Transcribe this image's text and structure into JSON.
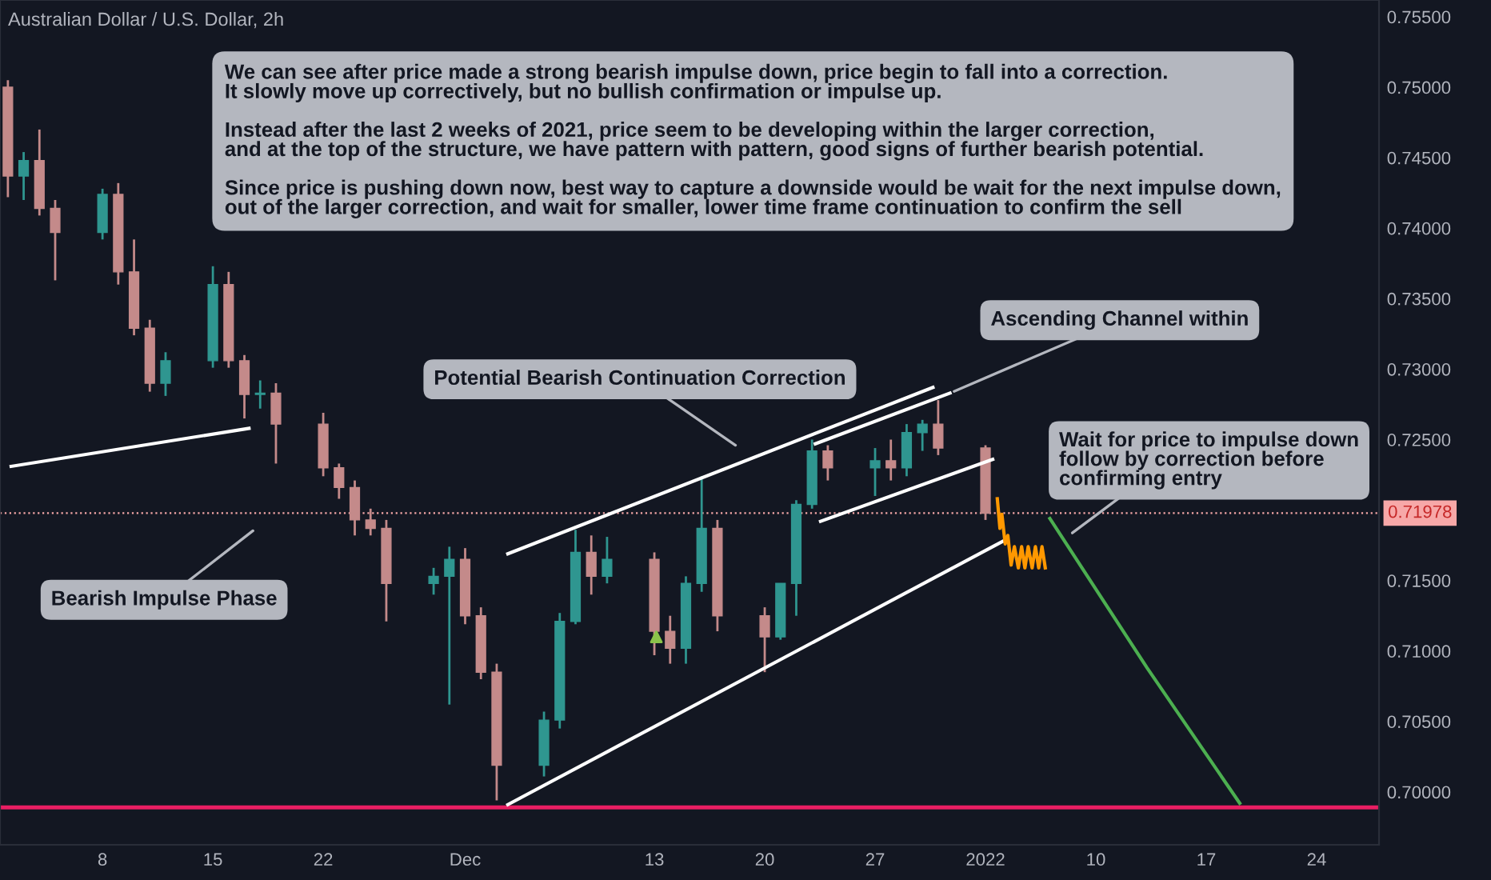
{
  "chart_data": {
    "type": "candlestick",
    "title": "Australian Dollar / U.S. Dollar, 2h",
    "x": [
      "2021-11-02",
      "2021-11-03",
      "2021-11-04",
      "2021-11-05",
      "2021-11-08",
      "2021-11-09",
      "2021-11-10",
      "2021-11-11",
      "2021-11-12",
      "2021-11-15",
      "2021-11-16",
      "2021-11-17",
      "2021-11-18",
      "2021-11-19",
      "2021-11-22",
      "2021-11-23",
      "2021-11-24",
      "2021-11-25",
      "2021-11-26",
      "2021-11-29",
      "2021-11-30",
      "2021-12-01",
      "2021-12-02",
      "2021-12-03",
      "2021-12-06",
      "2021-12-07",
      "2021-12-08",
      "2021-12-09",
      "2021-12-10",
      "2021-12-13",
      "2021-12-14",
      "2021-12-15",
      "2021-12-16",
      "2021-12-17",
      "2021-12-20",
      "2021-12-21",
      "2021-12-22",
      "2021-12-23",
      "2021-12-24",
      "2021-12-27",
      "2021-12-28",
      "2021-12-29",
      "2021-12-30",
      "2021-12-31",
      "2022-01-03"
    ],
    "ohlc": [
      [
        0.75,
        0.7505,
        0.7422,
        0.7437
      ],
      [
        0.7437,
        0.7454,
        0.742,
        0.7448
      ],
      [
        0.7448,
        0.747,
        0.7409,
        0.7414
      ],
      [
        0.7414,
        0.742,
        0.7363,
        0.7397
      ],
      [
        0.7397,
        0.7428,
        0.7392,
        0.7424
      ],
      [
        0.7424,
        0.7432,
        0.736,
        0.7369
      ],
      [
        0.7369,
        0.7392,
        0.7324,
        0.7329
      ],
      [
        0.7329,
        0.7335,
        0.7284,
        0.729
      ],
      [
        0.729,
        0.7312,
        0.7281,
        0.7306
      ],
      [
        0.7306,
        0.7373,
        0.7301,
        0.736
      ],
      [
        0.736,
        0.7369,
        0.7301,
        0.7306
      ],
      [
        0.7306,
        0.731,
        0.7265,
        0.7282
      ],
      [
        0.7282,
        0.7292,
        0.7272,
        0.7283
      ],
      [
        0.7283,
        0.729,
        0.7233,
        0.7261
      ],
      [
        0.7261,
        0.7269,
        0.7224,
        0.723
      ],
      [
        0.723,
        0.7233,
        0.7208,
        0.7216
      ],
      [
        0.7216,
        0.7221,
        0.7182,
        0.7193
      ],
      [
        0.7193,
        0.7201,
        0.7182,
        0.7187
      ],
      [
        0.7187,
        0.7193,
        0.7121,
        0.7148
      ],
      [
        0.7148,
        0.7159,
        0.714,
        0.7153
      ],
      [
        0.7153,
        0.7174,
        0.7062,
        0.7165
      ],
      [
        0.7165,
        0.7173,
        0.7119,
        0.7125
      ],
      [
        0.7125,
        0.7131,
        0.708,
        0.7085
      ],
      [
        0.7085,
        0.7091,
        0.6994,
        0.7019
      ],
      [
        0.7019,
        0.7057,
        0.7011,
        0.7051
      ],
      [
        0.7051,
        0.7127,
        0.7045,
        0.7121
      ],
      [
        0.7121,
        0.7186,
        0.7119,
        0.717
      ],
      [
        0.717,
        0.7182,
        0.714,
        0.7153
      ],
      [
        0.7153,
        0.7181,
        0.7148,
        0.7165
      ],
      [
        0.7165,
        0.717,
        0.7097,
        0.7114
      ],
      [
        0.7114,
        0.7125,
        0.7091,
        0.7102
      ],
      [
        0.7102,
        0.7153,
        0.7091,
        0.7148
      ],
      [
        0.7148,
        0.7224,
        0.7142,
        0.7187
      ],
      [
        0.7187,
        0.7193,
        0.7114,
        0.7125
      ],
      [
        0.7125,
        0.7131,
        0.7085,
        0.711
      ],
      [
        0.711,
        0.7148,
        0.7108,
        0.7148
      ],
      [
        0.7148,
        0.7207,
        0.7125,
        0.7204
      ],
      [
        0.7204,
        0.725,
        0.7201,
        0.7242
      ],
      [
        0.7242,
        0.7246,
        0.7221,
        0.723
      ],
      [
        0.723,
        0.7244,
        0.721,
        0.7235
      ],
      [
        0.7235,
        0.725,
        0.7221,
        0.723
      ],
      [
        0.723,
        0.7261,
        0.7224,
        0.7255
      ],
      [
        0.7255,
        0.7264,
        0.7242,
        0.7261
      ],
      [
        0.7261,
        0.7278,
        0.7239,
        0.7244
      ],
      [
        0.7244,
        0.7246,
        0.7193,
        0.71978
      ]
    ],
    "colors": [
      "#c48a8a",
      "#2f9690",
      "#c48a8a",
      "#c48a8a",
      "#2f9690",
      "#c48a8a",
      "#c48a8a",
      "#c48a8a",
      "#2f9690",
      "#2f9690",
      "#c48a8a",
      "#c48a8a",
      "#2f9690",
      "#c48a8a",
      "#c48a8a",
      "#c48a8a",
      "#c48a8a",
      "#c48a8a",
      "#c48a8a",
      "#2f9690",
      "#2f9690",
      "#c48a8a",
      "#c48a8a",
      "#c48a8a",
      "#2f9690",
      "#2f9690",
      "#2f9690",
      "#c48a8a",
      "#2f9690",
      "#c48a8a",
      "#c48a8a",
      "#2f9690",
      "#2f9690",
      "#c48a8a",
      "#c48a8a",
      "#2f9690",
      "#2f9690",
      "#2f9690",
      "#c48a8a",
      "#2f9690",
      "#c48a8a",
      "#2f9690",
      "#2f9690",
      "#c48a8a",
      "#c48a8a"
    ],
    "series": [
      {
        "type": "line",
        "color": "#ffffff",
        "x": [
          "2021-11-02T05:00",
          "2021-11-17T07:00"
        ],
        "values": [
          0.7231,
          0.7258
        ]
      },
      {
        "type": "line",
        "color": "#ffffff",
        "x": [
          "2021-12-03T17:00",
          "2021-12-30T16:00"
        ],
        "values": [
          0.7169,
          0.7287
        ]
      },
      {
        "type": "line",
        "color": "#ffffff",
        "x": [
          "2021-12-23T05:00",
          "2021-12-31T18:00"
        ],
        "values": [
          0.7247,
          0.7283
        ]
      },
      {
        "type": "line",
        "color": "#ffffff",
        "x": [
          "2021-12-23T13:00",
          "2022-01-03T11:00"
        ],
        "values": [
          0.7192,
          0.7236
        ]
      },
      {
        "type": "line",
        "color": "#ffffff",
        "x": [
          "2021-12-03T17:00",
          "2022-01-04T03:00"
        ],
        "values": [
          0.6991,
          0.7178
        ]
      },
      {
        "type": "line",
        "color": "#ff9800",
        "x": [
          "2022-01-03T18:00",
          "2022-01-03T22:00",
          "2022-01-04T01:00",
          "2022-01-04T06:00",
          "2022-01-04T10:00",
          "2022-01-04T15:00",
          "2022-01-04T20:00",
          "2022-01-05T02:00",
          "2022-01-05T07:00",
          "2022-01-05T12:00",
          "2022-01-05T17:00",
          "2022-01-05T23:00",
          "2022-01-06T04:00",
          "2022-01-06T09:00",
          "2022-01-06T14:00",
          "2022-01-06T19:00"
        ],
        "values": [
          0.7208,
          0.7187,
          0.7197,
          0.7176,
          0.7182,
          0.7161,
          0.7174,
          0.7159,
          0.7174,
          0.7159,
          0.7174,
          0.7159,
          0.7174,
          0.7159,
          0.7174,
          0.7159
        ]
      },
      {
        "type": "line",
        "color": "#4caf50",
        "x": [
          "2022-01-07T02:00",
          "2022-01-13T06:00",
          "2022-01-19T03:00"
        ],
        "values": [
          0.7194,
          0.7088,
          0.6992
        ]
      },
      {
        "type": "scatter",
        "marker": "triangle",
        "color": "#8bc34a",
        "x": [
          "2021-12-13T03:00"
        ],
        "values": [
          0.711
        ]
      }
    ],
    "xlim": [
      "2021-11-01T12:00",
      "2022-01-27T23:00"
    ],
    "xticks": [
      {
        "value": "2021-11-08",
        "label": "8"
      },
      {
        "value": "2021-11-15",
        "label": "15"
      },
      {
        "value": "2021-11-22",
        "label": "22"
      },
      {
        "value": "2021-12-01",
        "label": "Dec"
      },
      {
        "value": "2021-12-13",
        "label": "13"
      },
      {
        "value": "2021-12-20",
        "label": "20"
      },
      {
        "value": "2021-12-27",
        "label": "27"
      },
      {
        "value": "2022-01-03",
        "label": "2022"
      },
      {
        "value": "2022-01-10",
        "label": "10"
      },
      {
        "value": "2022-01-17",
        "label": "17"
      },
      {
        "value": "2022-01-24",
        "label": "24"
      }
    ],
    "ylim": [
      0.69625,
      0.75619
    ],
    "yticks": [
      {
        "value": 0.7,
        "label": "0.70000"
      },
      {
        "value": 0.705,
        "label": "0.70500"
      },
      {
        "value": 0.71,
        "label": "0.71000"
      },
      {
        "value": 0.715,
        "label": "0.71500"
      },
      {
        "value": 0.725,
        "label": "0.72500"
      },
      {
        "value": 0.73,
        "label": "0.73000"
      },
      {
        "value": 0.735,
        "label": "0.73500"
      },
      {
        "value": 0.74,
        "label": "0.74000"
      },
      {
        "value": 0.745,
        "label": "0.74500"
      },
      {
        "value": 0.75,
        "label": "0.75000"
      },
      {
        "value": 0.755,
        "label": "0.75500"
      }
    ],
    "ref_lines": [
      {
        "axis": "y",
        "value": 0.6989,
        "color": "#e91e63",
        "line_style": "solid"
      },
      {
        "axis": "y",
        "value": 0.71978,
        "label": "0.71978",
        "color": "#f7a8a8",
        "line_style": "dotted"
      }
    ],
    "annotations": [
      "We can see after price made a strong bearish impulse down, price begin to fall into a correction.\nIt slowly move up correctively, but no bullish confirmation or impulse up.\n\nInstead after the last 2 weeks of 2021, price seem to be developing within the larger correction,\nand at the top of the structure, we have pattern with pattern, good signs of further bearish potential.\n\nSince price is pushing down now, best way to capture a downside would be wait for the next impulse down,\nout of the larger correction, and wait for smaller, lower time frame continuation to confirm the sell",
      "Potential Bearish Continuation Correction",
      {
        "text": "Ascending Channel within",
        "x": "2021-12-31T18:00",
        "y": 0.7283
      },
      "Bearish Impulse Phase",
      "Wait for price to impulse down\nfollow by correction before\nconfirming entry"
    ],
    "grid": false
  }
}
